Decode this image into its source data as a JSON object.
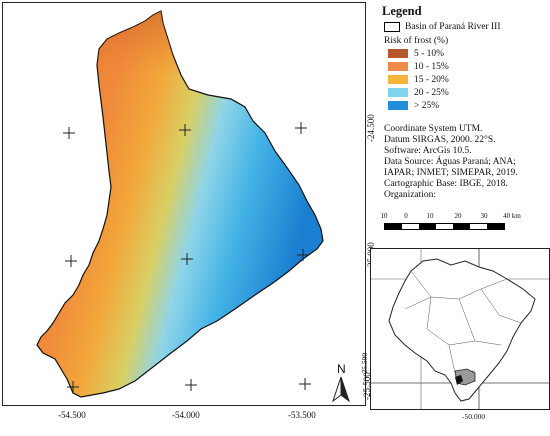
{
  "map": {
    "lon_labels": [
      "-54.500",
      "-54.000",
      "-53.500"
    ],
    "lat_labels": [
      "-24.500",
      "-25.000",
      "-25.500"
    ],
    "north_label": "N"
  },
  "legend": {
    "title": "Legend",
    "basin_label": "Basin of Paraná River III",
    "risk_title": "Risk of frost (%)",
    "classes": [
      {
        "label": "5 - 10%",
        "color": "#b5562c"
      },
      {
        "label": "10 - 15%",
        "color": "#f08a4b"
      },
      {
        "label": "15 - 20%",
        "color": "#f5b53a"
      },
      {
        "label": "20 - 25%",
        "color": "#7fd3ea"
      },
      {
        "label": "> 25%",
        "color": "#1e8fd8"
      }
    ]
  },
  "metadata": {
    "lines": [
      "Coordinate System UTM.",
      "Datum SIRGAS, 2000. 22°S.",
      "Software: ArcGis 10.5.",
      "Data Source: Águas Paraná; ANA;",
      "IAPAR; INMET; SIMEPAR, 2019.",
      "Cartographic Base: IBGE, 2018.",
      "Organization:"
    ]
  },
  "scalebar": {
    "labels": [
      "10",
      "0",
      "10",
      "20",
      "30",
      "40 km"
    ]
  },
  "inset": {
    "lat_label": "-25.500",
    "lon_label": "-50.000"
  }
}
